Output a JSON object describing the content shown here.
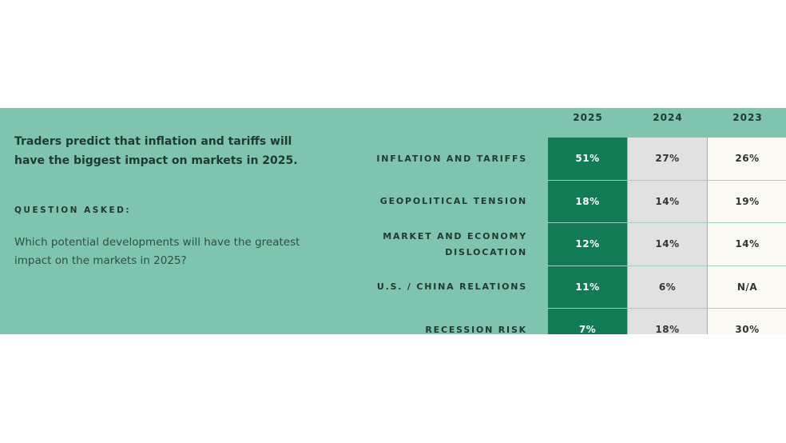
{
  "intro": {
    "parts": [
      "Traders predict that ",
      "inflation and tariffs",
      " will have the biggest impact on markets in 2025."
    ]
  },
  "question_heading": "QUESTION ASKED:",
  "question": "Which potential developments will have the greatest impact on the markets in 2025?",
  "table": {
    "columns": [
      "2025",
      "2024",
      "2023"
    ],
    "rows": [
      {
        "label": "INFLATION AND TARIFFS",
        "cells": [
          "51%",
          "27%",
          "26%"
        ]
      },
      {
        "label": "GEOPOLITICAL TENSION",
        "cells": [
          "18%",
          "14%",
          "19%"
        ]
      },
      {
        "label": "MARKET AND ECONOMY DISLOCATION",
        "cells": [
          "12%",
          "14%",
          "14%"
        ]
      },
      {
        "label": "U.S. / CHINA RELATIONS",
        "cells": [
          "11%",
          "6%",
          "N/A"
        ]
      },
      {
        "label": "RECESSION RISK",
        "cells": [
          "7%",
          "18%",
          "30%"
        ]
      }
    ]
  }
}
